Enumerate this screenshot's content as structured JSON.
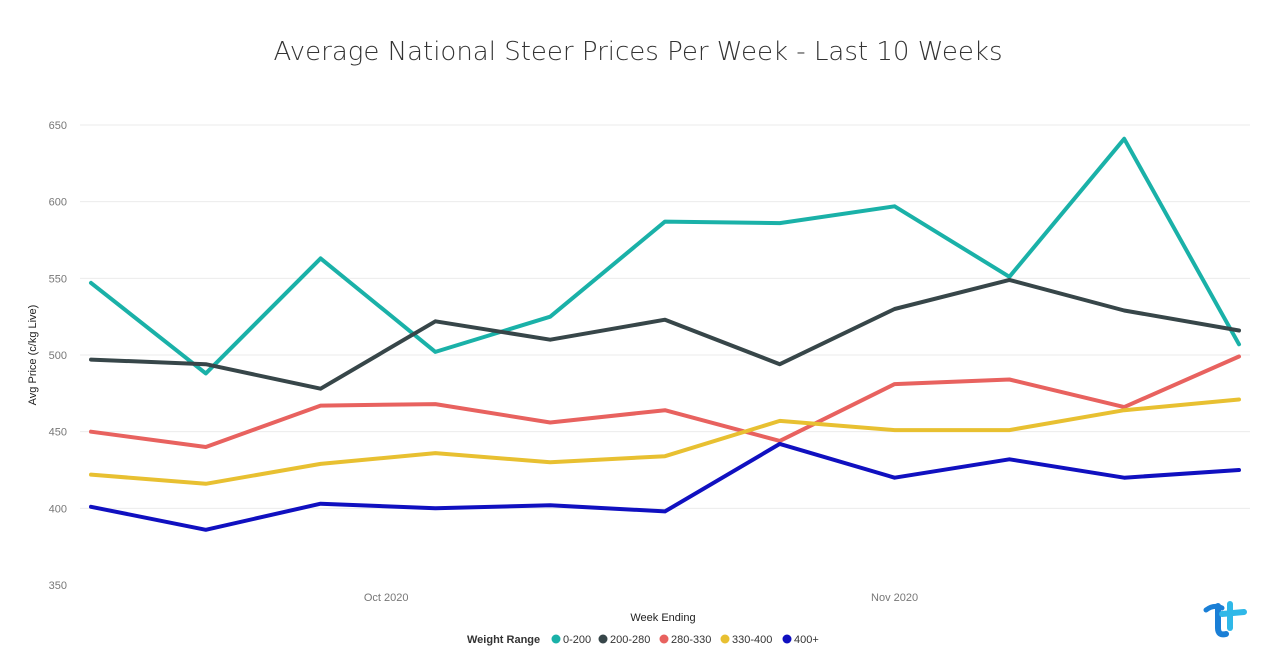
{
  "chart_data": {
    "type": "line",
    "title": "Average National Steer Prices Per Week - Last 10 Weeks",
    "xlabel": "Week Ending",
    "ylabel": "Avg Price (c/kg Live)",
    "ylim": [
      350,
      650
    ],
    "yticks": [
      650,
      600,
      550,
      500,
      450,
      400,
      350
    ],
    "x": [
      "2020-09-13",
      "2020-09-20",
      "2020-09-27",
      "2020-10-04",
      "2020-10-11",
      "2020-10-18",
      "2020-10-25",
      "2020-11-01",
      "2020-11-08",
      "2020-11-15",
      "2020-11-22"
    ],
    "xtick_labels": [
      {
        "x": "2020-10-01",
        "label": "Oct 2020"
      },
      {
        "x": "2020-11-01",
        "label": "Nov 2020"
      }
    ],
    "legend": {
      "title": "Weight Range",
      "position": "bottom"
    },
    "grid": true,
    "series": [
      {
        "name": "0-200",
        "color": "#1AB1A8",
        "values": [
          547,
          488,
          563,
          502,
          525,
          587,
          586,
          597,
          551,
          641,
          507
        ]
      },
      {
        "name": "200-280",
        "color": "#374649",
        "values": [
          497,
          494,
          478,
          522,
          510,
          523,
          494,
          530,
          549,
          529,
          516
        ]
      },
      {
        "name": "280-330",
        "color": "#E8625F",
        "values": [
          450,
          440,
          467,
          468,
          456,
          464,
          444,
          481,
          484,
          466,
          499
        ]
      },
      {
        "name": "330-400",
        "color": "#E8C031",
        "values": [
          422,
          416,
          429,
          436,
          430,
          434,
          457,
          451,
          451,
          464,
          471
        ]
      },
      {
        "name": "400+",
        "color": "#1010C0",
        "values": [
          401,
          386,
          403,
          400,
          402,
          398,
          442,
          420,
          432,
          420,
          425
        ]
      }
    ]
  },
  "logo": {
    "name": "brand-logo",
    "color": "#1a7fd6"
  }
}
